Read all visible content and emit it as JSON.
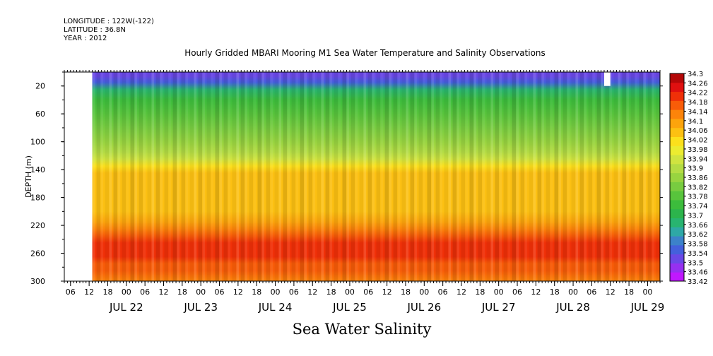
{
  "header": {
    "longitude": "LONGITUDE : 122W(-122)",
    "latitude": "LATITUDE : 36.8N",
    "year": "YEAR : 2012"
  },
  "chart_data": {
    "type": "heatmap",
    "title": "Hourly Gridded MBARI Mooring M1 Sea Water Temperature and Salinity Observations",
    "xlabel": "",
    "ylabel": "DEPTH (m)",
    "caption": "Sea Water Salinity",
    "ylim": [
      300,
      0
    ],
    "y_reversed": true,
    "y_ticks": [
      20,
      60,
      100,
      140,
      180,
      220,
      260,
      300
    ],
    "x_hour_ticks": [
      "06",
      "12",
      "18",
      "00",
      "06",
      "12",
      "18",
      "00",
      "06",
      "12",
      "18",
      "00",
      "06",
      "12",
      "18",
      "00",
      "06",
      "12",
      "18",
      "00",
      "06",
      "12",
      "18",
      "00",
      "06",
      "12",
      "18",
      "00",
      "06",
      "12",
      "18",
      "00"
    ],
    "x_date_labels": [
      "JUL 22",
      "JUL 23",
      "JUL 24",
      "JUL 25",
      "JUL 26",
      "JUL 27",
      "JUL 28",
      "JUL 29"
    ],
    "x_start": "2012-07-21T04:00",
    "x_end": "2012-07-29T04:00",
    "data_start": "2012-07-21T13:00",
    "missing_block": {
      "start": "2012-07-28T10:00",
      "end": "2012-07-28T12:00",
      "depth_to": 20
    },
    "colorbar": {
      "levels": [
        33.42,
        33.46,
        33.5,
        33.54,
        33.58,
        33.62,
        33.66,
        33.7,
        33.74,
        33.78,
        33.82,
        33.86,
        33.9,
        33.94,
        33.98,
        34.02,
        34.06,
        34.1,
        34.14,
        34.18,
        34.22,
        34.26,
        34.3
      ],
      "colors": [
        "#c018ff",
        "#9630f0",
        "#6a48e6",
        "#4460dc",
        "#3c82ca",
        "#2ea8a6",
        "#28b470",
        "#2cb44c",
        "#3cbc3c",
        "#58c43c",
        "#78cc40",
        "#98d440",
        "#b4dc44",
        "#d0e440",
        "#ecec30",
        "#fce01c",
        "#fcc012",
        "#fca40c",
        "#fc840a",
        "#f85c08",
        "#f03008",
        "#e01010",
        "#b40808"
      ]
    },
    "profile": {
      "depths": [
        6,
        15,
        25,
        40,
        60,
        80,
        100,
        115,
        125,
        135,
        145,
        160,
        180,
        200,
        215,
        225,
        235,
        245,
        255,
        265,
        275,
        285,
        300
      ],
      "salinity": [
        33.52,
        33.58,
        33.7,
        33.76,
        33.8,
        33.84,
        33.88,
        33.93,
        33.98,
        34.05,
        34.08,
        34.07,
        34.08,
        34.1,
        34.14,
        34.18,
        34.22,
        34.25,
        34.26,
        34.25,
        34.22,
        34.2,
        34.18
      ]
    }
  },
  "footer": {
    "caption": "Sea Water Salinity"
  }
}
